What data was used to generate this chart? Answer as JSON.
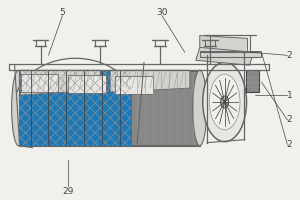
{
  "bg_color": "#f2f0ec",
  "line_color": "#666666",
  "dark_color": "#444444",
  "medium_gray": "#999999",
  "fill_light": "#e8e6e2",
  "fill_mid": "#d4d2ce",
  "fill_dark": "#aaa9a6",
  "fill_darker": "#888887",
  "figsize": [
    3.0,
    2.0
  ],
  "dpi": 100
}
